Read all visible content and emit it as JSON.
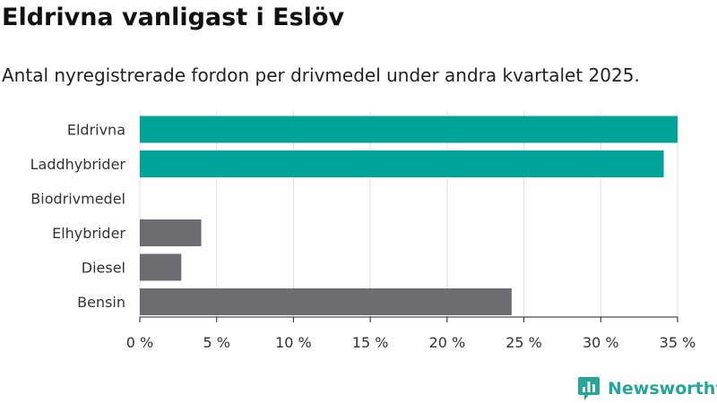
{
  "title": "Eldrivna vanligast i Eslöv",
  "subtitle": "Antal nyregistrerade fordon per drivmedel under andra kvartalet 2025.",
  "brand": {
    "name": "Newsworthy",
    "icon": "newsworthy-logo-icon",
    "color": "#26a69a"
  },
  "colors": {
    "highlight": "#00a398",
    "other": "#6d6c72",
    "grid": "#dddddd",
    "axis": "#222222"
  },
  "chart_data": {
    "type": "bar",
    "orientation": "horizontal",
    "categories": [
      "Eldrivna",
      "Laddhybrider",
      "Biodrivmedel",
      "Elhybrider",
      "Diesel",
      "Bensin"
    ],
    "values": [
      35.0,
      34.1,
      0,
      4.0,
      2.7,
      24.2
    ],
    "highlighted": [
      true,
      true,
      true,
      false,
      false,
      false
    ],
    "xlim": [
      0,
      35
    ],
    "xticks": [
      0,
      5,
      10,
      15,
      20,
      25,
      30,
      35
    ],
    "tick_labels": [
      "0 %",
      "5 %",
      "10 %",
      "15 %",
      "20 %",
      "25 %",
      "30 %",
      "35 %"
    ],
    "xlabel": "",
    "ylabel": "",
    "grid": true
  }
}
